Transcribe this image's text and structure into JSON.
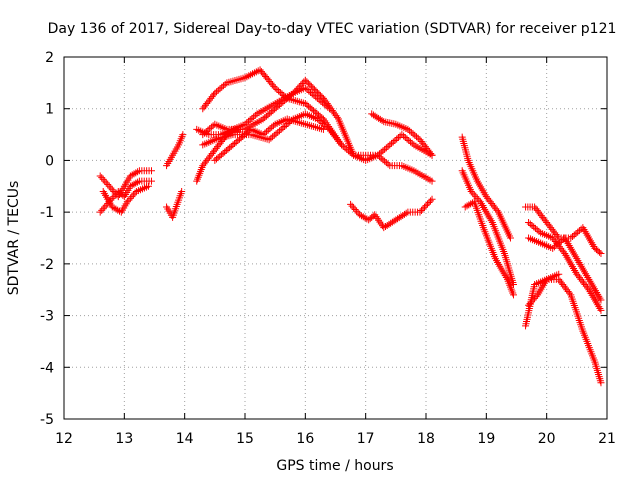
{
  "chart_data": {
    "type": "scatter",
    "title": "Day 136 of 2017, Sidereal Day-to-day VTEC variation (SDTVAR) for receiver p121",
    "xlabel": "GPS time / hours",
    "ylabel": "SDTVAR / TECUs",
    "xlim": [
      12,
      21
    ],
    "ylim": [
      -5,
      2
    ],
    "xticks": [
      "12",
      "13",
      "14",
      "15",
      "16",
      "17",
      "18",
      "19",
      "20",
      "21"
    ],
    "yticks": [
      "-5",
      "-4",
      "-3",
      "-2",
      "-1",
      "0",
      "1",
      "2"
    ],
    "grid": true,
    "marker": "+",
    "marker_color": "#ff0000",
    "series": [
      {
        "name": "s1",
        "x": [
          12.6,
          12.75,
          12.9,
          13.0,
          13.1,
          13.25,
          13.45
        ],
        "y": [
          -0.3,
          -0.5,
          -0.7,
          -0.5,
          -0.3,
          -0.2,
          -0.2
        ]
      },
      {
        "name": "s2",
        "x": [
          12.6,
          12.75,
          12.9,
          13.0,
          13.1,
          13.25,
          13.45
        ],
        "y": [
          -1.0,
          -0.8,
          -0.6,
          -0.7,
          -0.5,
          -0.4,
          -0.4
        ]
      },
      {
        "name": "s3",
        "x": [
          12.65,
          12.8,
          12.95,
          13.05,
          13.2,
          13.4
        ],
        "y": [
          -0.6,
          -0.9,
          -1.0,
          -0.8,
          -0.6,
          -0.5
        ]
      },
      {
        "name": "s4",
        "x": [
          13.7,
          13.8,
          13.9,
          13.97
        ],
        "y": [
          -0.1,
          0.1,
          0.3,
          0.5
        ]
      },
      {
        "name": "s5",
        "x": [
          13.7,
          13.8,
          13.95
        ],
        "y": [
          -0.9,
          -1.1,
          -0.6
        ]
      },
      {
        "name": "s6",
        "x": [
          14.2,
          14.3,
          14.5,
          14.7,
          14.9
        ],
        "y": [
          -0.4,
          -0.1,
          0.2,
          0.5,
          0.6
        ]
      },
      {
        "name": "s7",
        "x": [
          14.3,
          14.5,
          14.7,
          15.0,
          15.25,
          15.5,
          15.7,
          16.0,
          16.3,
          16.6,
          16.8,
          17.0,
          17.2,
          17.4,
          17.6,
          17.8,
          18.1
        ],
        "y": [
          1.0,
          1.3,
          1.5,
          1.6,
          1.75,
          1.4,
          1.2,
          1.1,
          0.8,
          0.3,
          0.1,
          0.1,
          0.1,
          -0.1,
          -0.1,
          -0.2,
          -0.4
        ]
      },
      {
        "name": "s8",
        "x": [
          14.3,
          14.5,
          14.7,
          15.0,
          15.3,
          15.6,
          15.8,
          16.0,
          16.3,
          16.55,
          16.8,
          17.0,
          17.2,
          17.4,
          17.6,
          17.8,
          18.1
        ],
        "y": [
          0.5,
          0.7,
          0.6,
          0.6,
          0.8,
          1.1,
          1.3,
          1.55,
          1.2,
          0.8,
          0.1,
          0.0,
          0.1,
          0.3,
          0.5,
          0.3,
          0.1
        ]
      },
      {
        "name": "s9",
        "x": [
          14.2,
          14.4,
          14.6,
          14.8,
          15.0,
          15.2,
          15.5,
          15.8,
          16.0,
          16.2,
          16.4
        ],
        "y": [
          0.6,
          0.5,
          0.5,
          0.6,
          0.7,
          0.9,
          1.1,
          1.3,
          1.4,
          1.2,
          1.0
        ]
      },
      {
        "name": "s10",
        "x": [
          14.3,
          14.5,
          14.8,
          15.1,
          15.4,
          15.6,
          15.8,
          16.0,
          16.2,
          16.4,
          16.6
        ],
        "y": [
          0.3,
          0.4,
          0.5,
          0.5,
          0.4,
          0.6,
          0.8,
          0.9,
          0.8,
          0.6,
          0.3
        ]
      },
      {
        "name": "s11",
        "x": [
          14.5,
          14.8,
          15.1,
          15.3,
          15.5,
          15.7,
          16.0,
          16.3
        ],
        "y": [
          0.0,
          0.3,
          0.6,
          0.5,
          0.7,
          0.8,
          0.7,
          0.6
        ]
      },
      {
        "name": "s12",
        "x": [
          17.1,
          17.3,
          17.5,
          17.7,
          17.9,
          18.1
        ],
        "y": [
          0.9,
          0.75,
          0.7,
          0.6,
          0.4,
          0.1
        ]
      },
      {
        "name": "s13",
        "x": [
          16.75,
          16.9,
          17.05,
          17.15,
          17.3,
          17.5,
          17.7,
          17.9,
          18.1
        ],
        "y": [
          -0.85,
          -1.05,
          -1.15,
          -1.05,
          -1.3,
          -1.15,
          -1.0,
          -1.0,
          -0.75
        ]
      },
      {
        "name": "s14",
        "x": [
          18.6,
          18.7,
          18.85,
          19.0,
          19.2,
          19.4
        ],
        "y": [
          0.45,
          0.0,
          -0.4,
          -0.7,
          -1.0,
          -1.5
        ]
      },
      {
        "name": "s15",
        "x": [
          18.6,
          18.75,
          18.9,
          19.1,
          19.3,
          19.45
        ],
        "y": [
          -0.2,
          -0.6,
          -0.8,
          -1.2,
          -1.8,
          -2.4
        ]
      },
      {
        "name": "s16",
        "x": [
          18.65,
          18.8,
          18.95,
          19.15,
          19.35,
          19.45
        ],
        "y": [
          -0.9,
          -0.8,
          -1.3,
          -1.9,
          -2.3,
          -2.6
        ]
      },
      {
        "name": "s17",
        "x": [
          19.65,
          19.8,
          20.0,
          20.2,
          20.4,
          20.6,
          20.8,
          20.9
        ],
        "y": [
          -0.9,
          -0.9,
          -1.2,
          -1.5,
          -1.5,
          -1.3,
          -1.7,
          -1.8
        ]
      },
      {
        "name": "s18",
        "x": [
          19.7,
          19.9,
          20.1,
          20.3,
          20.5,
          20.7,
          20.9
        ],
        "y": [
          -1.5,
          -1.6,
          -1.7,
          -1.5,
          -1.9,
          -2.3,
          -2.7
        ]
      },
      {
        "name": "s19",
        "x": [
          19.7,
          19.9,
          20.1,
          20.3,
          20.5,
          20.7,
          20.9
        ],
        "y": [
          -1.2,
          -1.4,
          -1.5,
          -1.8,
          -2.2,
          -2.5,
          -2.9
        ]
      },
      {
        "name": "s20",
        "x": [
          19.65,
          19.8,
          20.0,
          20.2,
          20.4,
          20.6,
          20.8,
          20.9
        ],
        "y": [
          -3.2,
          -2.4,
          -2.3,
          -2.3,
          -2.6,
          -3.3,
          -3.9,
          -4.3
        ]
      },
      {
        "name": "s21",
        "x": [
          19.7,
          19.85,
          20.0,
          20.2
        ],
        "y": [
          -2.8,
          -2.6,
          -2.3,
          -2.2
        ]
      }
    ]
  }
}
